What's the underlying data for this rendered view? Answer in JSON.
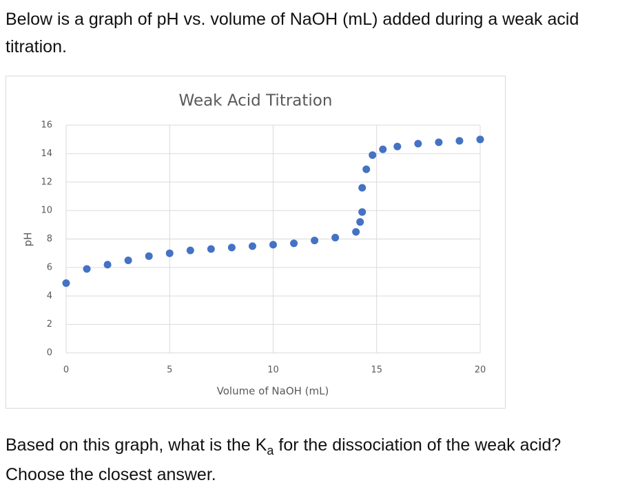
{
  "intro": "Below is a graph of pH vs. volume of NaOH (mL) added during a weak acid titration.",
  "question": {
    "before": "Based on this graph, what is the K",
    "subscript": "a",
    "after": " for the dissociation of the weak acid?",
    "instruction": "Choose the closest answer."
  },
  "chart_data": {
    "type": "scatter",
    "title": "Weak Acid Titration",
    "x_label": "Volume of NaOH (mL)",
    "y_label": "pH",
    "x": [
      0,
      1,
      2,
      3,
      4,
      5,
      6,
      7,
      8,
      9,
      10,
      11,
      12,
      13,
      14,
      14.2,
      14.3,
      14.3,
      14.5,
      14.8,
      15.3,
      16,
      17,
      18,
      19,
      20
    ],
    "values": [
      4.9,
      5.9,
      6.2,
      6.5,
      6.8,
      7.0,
      7.2,
      7.3,
      7.4,
      7.5,
      7.6,
      7.7,
      7.9,
      8.1,
      8.5,
      9.2,
      9.9,
      11.6,
      12.9,
      13.9,
      14.3,
      14.5,
      14.7,
      14.8,
      14.9,
      15.0
    ],
    "color": "#4472c4",
    "xlim": [
      0,
      20
    ],
    "xticks": [
      0,
      5,
      10,
      15,
      20
    ],
    "ylim": [
      0,
      16
    ],
    "yticks": [
      0,
      2,
      4,
      6,
      8,
      10,
      12,
      14,
      16
    ],
    "grid": true
  }
}
